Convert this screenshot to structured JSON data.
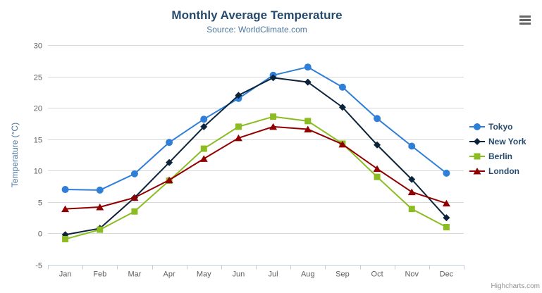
{
  "header": {
    "title": "Monthly Average Temperature",
    "subtitle": "Source: WorldClimate.com"
  },
  "menu": {
    "icon": "hamburger-menu-icon"
  },
  "credits": {
    "label": "Highcharts.com"
  },
  "chart_data": {
    "type": "line",
    "title": "Monthly Average Temperature",
    "subtitle": "Source: WorldClimate.com",
    "categories": [
      "Jan",
      "Feb",
      "Mar",
      "Apr",
      "May",
      "Jun",
      "Jul",
      "Aug",
      "Sep",
      "Oct",
      "Nov",
      "Dec"
    ],
    "xlabel": "",
    "ylabel": "Temperature (°C)",
    "ylim": [
      -5,
      30
    ],
    "ytick_interval": 5,
    "yticks": [
      -5,
      0,
      5,
      10,
      15,
      20,
      25,
      30
    ],
    "grid": true,
    "legend_position": "right",
    "series": [
      {
        "name": "Tokyo",
        "color": "#2f7ed8",
        "marker": "circle",
        "values": [
          7.0,
          6.9,
          9.5,
          14.5,
          18.2,
          21.5,
          25.2,
          26.5,
          23.3,
          18.3,
          13.9,
          9.6
        ]
      },
      {
        "name": "New York",
        "color": "#0d233a",
        "marker": "diamond",
        "values": [
          -0.2,
          0.8,
          5.7,
          11.3,
          17.0,
          22.0,
          24.8,
          24.1,
          20.1,
          14.1,
          8.6,
          2.5
        ]
      },
      {
        "name": "Berlin",
        "color": "#8bbc21",
        "marker": "square",
        "values": [
          -0.9,
          0.6,
          3.5,
          8.4,
          13.5,
          17.0,
          18.6,
          17.9,
          14.3,
          9.0,
          3.9,
          1.0
        ]
      },
      {
        "name": "London",
        "color": "#910000",
        "marker": "triangle",
        "values": [
          3.9,
          4.2,
          5.7,
          8.5,
          11.9,
          15.2,
          17.0,
          16.6,
          14.2,
          10.3,
          6.6,
          4.8
        ]
      }
    ],
    "styles": {
      "grid_color": "#d8d8d8",
      "axis_line_color": "#c0d0e0",
      "tick_label_color": "#606060",
      "axis_title_color": "#4d759e",
      "title_color": "#274b6d",
      "subtitle_color": "#4d759e",
      "legend_text_color": "#274b6d",
      "credits_color": "#909090"
    }
  }
}
